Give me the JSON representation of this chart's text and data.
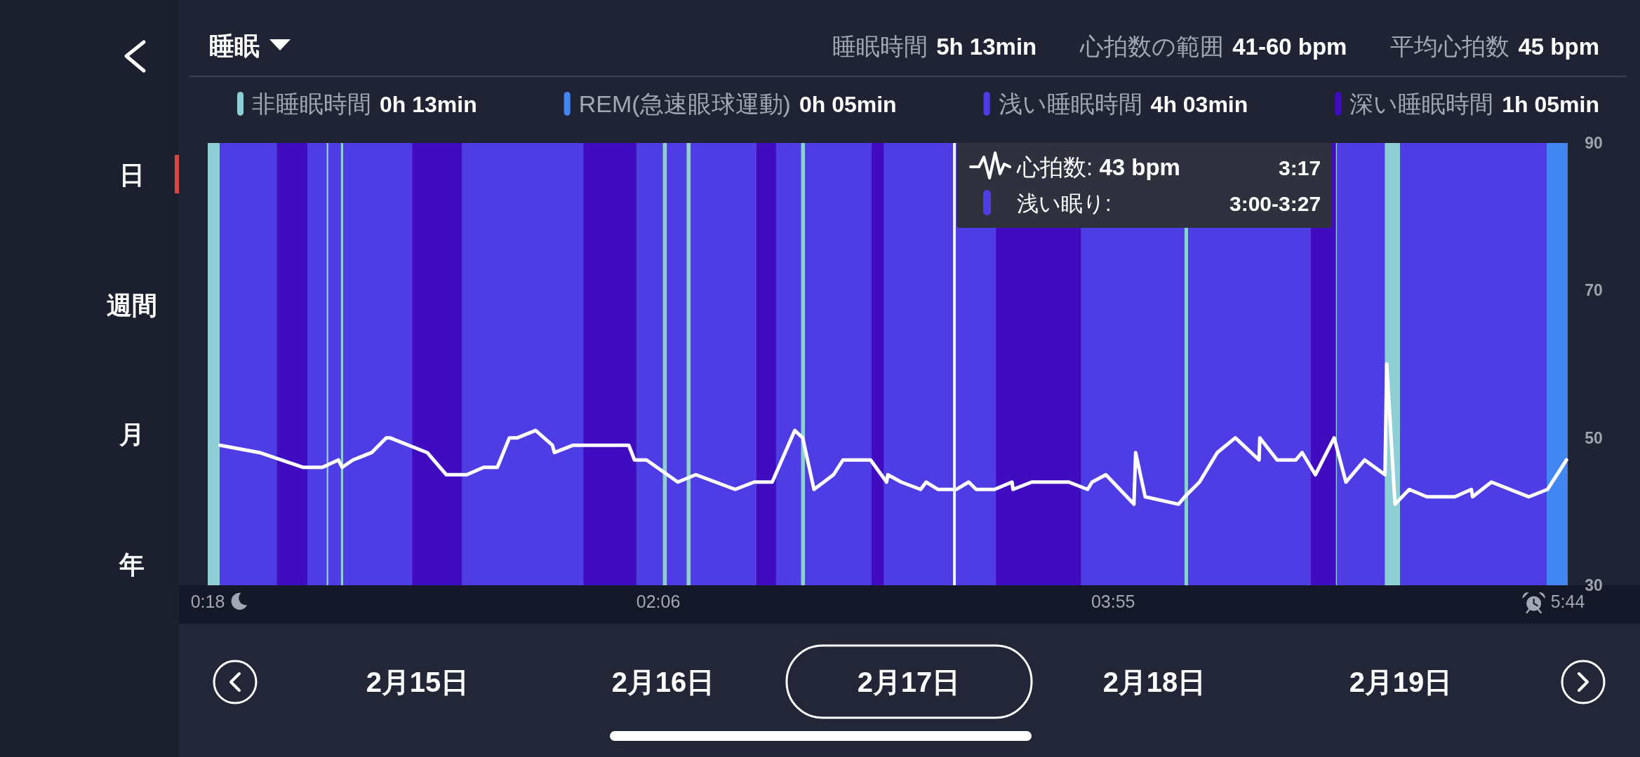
{
  "chart_data": {
    "type": "line",
    "title": "睡眠",
    "xlim": [
      0.3,
      5.733
    ],
    "xticks": [
      {
        "value": 0.3,
        "label": "0:18"
      },
      {
        "value": 2.1,
        "label": "02:06"
      },
      {
        "value": 3.917,
        "label": "03:55"
      },
      {
        "value": 5.733,
        "label": "5:44"
      }
    ],
    "ylim": [
      30,
      90
    ],
    "yticks": [
      30,
      50,
      70,
      90
    ],
    "legend": "top",
    "x": [
      0.349,
      0.507,
      0.68,
      0.758,
      0.822,
      0.837,
      0.88,
      0.955,
      1.013,
      1.028,
      1.177,
      1.253,
      1.335,
      1.402,
      1.457,
      1.505,
      1.537,
      1.61,
      1.677,
      1.685,
      1.76,
      1.982,
      2.005,
      2.053,
      2.178,
      2.25,
      2.407,
      2.483,
      2.555,
      2.645,
      2.677,
      2.722,
      2.8,
      2.838,
      2.948,
      3.012,
      3.017,
      3.07,
      3.148,
      3.17,
      3.218,
      3.29,
      3.34,
      3.37,
      3.443,
      3.513,
      3.517,
      3.592,
      3.74,
      3.815,
      3.833,
      3.888,
      4.0,
      4.007,
      4.045,
      4.178,
      4.203,
      4.262,
      4.333,
      4.405,
      4.5,
      4.503,
      4.572,
      4.647,
      4.672,
      4.725,
      4.8,
      4.847,
      4.922,
      5.003,
      5.01,
      5.043,
      5.1,
      5.17,
      5.282,
      5.348,
      5.353,
      5.428,
      5.578,
      5.652,
      5.728
    ],
    "series": [
      {
        "color": "#ffffff",
        "values": [
          49,
          48,
          46,
          46,
          47,
          46,
          47,
          48,
          50,
          50,
          48,
          45,
          45,
          46,
          46,
          50,
          50,
          51,
          49,
          48,
          49,
          49,
          47,
          47,
          44,
          45,
          43,
          44,
          44,
          51,
          50,
          43,
          45,
          47,
          47,
          44,
          45,
          44,
          43,
          44,
          43,
          43,
          44,
          43,
          43,
          44,
          43,
          44,
          44,
          43,
          44,
          45,
          41,
          48,
          42,
          41,
          42,
          44,
          48,
          50,
          47,
          50,
          47,
          47,
          48,
          45,
          50,
          44,
          47,
          45,
          60,
          41,
          43,
          42,
          42,
          43,
          42,
          44,
          42,
          43,
          47
        ]
      }
    ],
    "bands": [
      {
        "axis": "x",
        "from": 0.3,
        "to": 0.348,
        "label": "非睡眠時間",
        "color": "#8ecfd5"
      },
      {
        "axis": "x",
        "from": 5.648,
        "to": 5.733,
        "label": "REM(急速眼球運動)",
        "color": "#4286f2"
      },
      {
        "axis": "x",
        "from": 0.348,
        "to": 0.577,
        "label": "浅い睡眠時間",
        "color": "#4e3ce4"
      },
      {
        "axis": "x",
        "from": 0.577,
        "to": 0.698,
        "label": "深い睡眠時間",
        "color": "#410cc0"
      },
      {
        "axis": "x",
        "from": 0.698,
        "to": 0.775,
        "color": "#4e3ce4"
      },
      {
        "axis": "x",
        "from": 0.775,
        "to": 0.782,
        "color": "#8ecfd5"
      },
      {
        "axis": "x",
        "from": 0.782,
        "to": 0.832,
        "color": "#4e3ce4"
      },
      {
        "axis": "x",
        "from": 0.832,
        "to": 0.842,
        "color": "#8ecfd5"
      },
      {
        "axis": "x",
        "from": 0.842,
        "to": 1.118,
        "color": "#4e3ce4"
      },
      {
        "axis": "x",
        "from": 1.118,
        "to": 1.315,
        "color": "#410cc0"
      },
      {
        "axis": "x",
        "from": 1.315,
        "to": 1.802,
        "color": "#4e3ce4"
      },
      {
        "axis": "x",
        "from": 1.802,
        "to": 2.012,
        "color": "#410cc0"
      },
      {
        "axis": "x",
        "from": 2.012,
        "to": 2.118,
        "color": "#4e3ce4"
      },
      {
        "axis": "x",
        "from": 2.118,
        "to": 2.135,
        "color": "#8ecfd5"
      },
      {
        "axis": "x",
        "from": 2.135,
        "to": 2.213,
        "color": "#4e3ce4"
      },
      {
        "axis": "x",
        "from": 2.213,
        "to": 2.23,
        "color": "#8ecfd5"
      },
      {
        "axis": "x",
        "from": 2.23,
        "to": 2.493,
        "color": "#4e3ce4"
      },
      {
        "axis": "x",
        "from": 2.493,
        "to": 2.57,
        "color": "#410cc0"
      },
      {
        "axis": "x",
        "from": 2.57,
        "to": 2.67,
        "color": "#4e3ce4"
      },
      {
        "axis": "x",
        "from": 2.67,
        "to": 2.687,
        "color": "#8ecfd5"
      },
      {
        "axis": "x",
        "from": 2.687,
        "to": 2.952,
        "color": "#4e3ce4"
      },
      {
        "axis": "x",
        "from": 2.952,
        "to": 3.0,
        "color": "#410cc0"
      },
      {
        "axis": "x",
        "from": 3.0,
        "to": 3.45,
        "color": "#4e3ce4"
      },
      {
        "axis": "x",
        "from": 3.45,
        "to": 3.788,
        "color": "#410cc0"
      },
      {
        "axis": "x",
        "from": 3.788,
        "to": 4.202,
        "color": "#4e3ce4"
      },
      {
        "axis": "x",
        "from": 4.202,
        "to": 4.217,
        "color": "#8ecfd5"
      },
      {
        "axis": "x",
        "from": 4.217,
        "to": 4.707,
        "color": "#4e3ce4"
      },
      {
        "axis": "x",
        "from": 4.707,
        "to": 4.807,
        "color": "#410cc0"
      },
      {
        "axis": "x",
        "from": 4.807,
        "to": 4.812,
        "color": "#8ecfd5"
      },
      {
        "axis": "x",
        "from": 4.812,
        "to": 5.002,
        "color": "#4e3ce4"
      },
      {
        "axis": "x",
        "from": 5.002,
        "to": 5.063,
        "color": "#8ecfd5"
      },
      {
        "axis": "x",
        "from": 5.063,
        "to": 5.648,
        "color": "#4e3ce4"
      }
    ],
    "ref_lines": [
      {
        "axis": "x",
        "value": 3.283,
        "label": "3:17",
        "color": "#f2f2f5"
      }
    ],
    "annotations": [
      "睡眠時間",
      "5h 13min",
      "心拍数の範囲",
      "41-60 bpm",
      "平均心拍数",
      "45 bpm",
      "0h 13min",
      "0h 05min",
      "4h 03min",
      "1h 05min",
      "心拍数: 43 bpm",
      "浅い眠り:",
      "3:00-3:27",
      "日",
      "週間",
      "月",
      "年",
      "2月15日",
      "2月16日",
      "2月17日",
      "2月18日",
      "2月19日"
    ]
  }
}
